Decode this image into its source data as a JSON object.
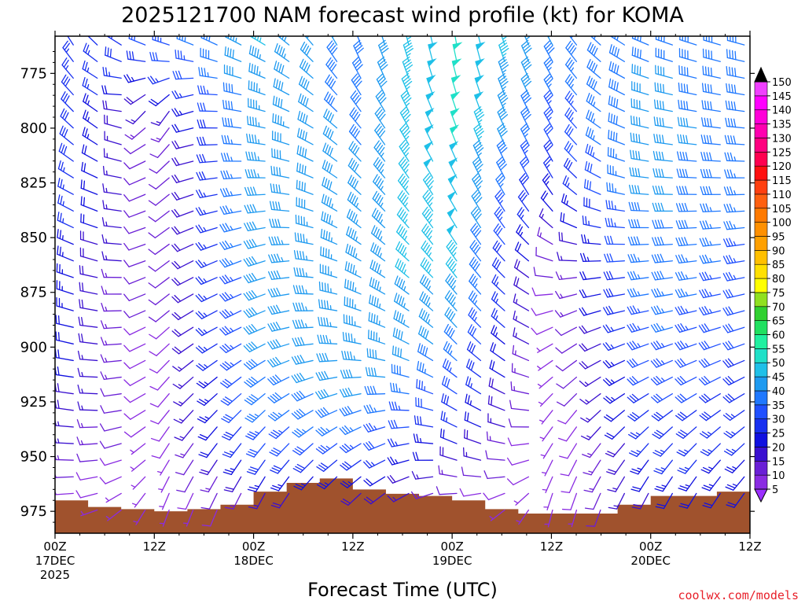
{
  "chart_data": {
    "type": "wind-barb-profile",
    "title": "2025121700 NAM forecast wind profile (kt) for KOMA",
    "xlabel": "Forecast Time (UTC)",
    "ylabel": "",
    "y_axis": {
      "reversed": true,
      "ylim": [
        985,
        758
      ],
      "ticks": [
        775,
        800,
        825,
        850,
        875,
        900,
        925,
        950,
        975
      ]
    },
    "x_axis": {
      "xlim_hours": [
        0,
        84
      ],
      "ticks": [
        {
          "hour": 0,
          "label1": "00Z",
          "label2": "17DEC",
          "label3": "2025"
        },
        {
          "hour": 12,
          "label1": "12Z",
          "label2": "",
          "label3": ""
        },
        {
          "hour": 24,
          "label1": "00Z",
          "label2": "18DEC",
          "label3": ""
        },
        {
          "hour": 36,
          "label1": "12Z",
          "label2": "",
          "label3": ""
        },
        {
          "hour": 48,
          "label1": "00Z",
          "label2": "19DEC",
          "label3": ""
        },
        {
          "hour": 60,
          "label1": "12Z",
          "label2": "",
          "label3": ""
        },
        {
          "hour": 72,
          "label1": "00Z",
          "label2": "20DEC",
          "label3": ""
        },
        {
          "hour": 84,
          "label1": "12Z",
          "label2": "",
          "label3": ""
        }
      ]
    },
    "colorbar": {
      "unit": "kt",
      "labels": [
        5,
        10,
        15,
        20,
        25,
        30,
        35,
        40,
        45,
        50,
        55,
        60,
        65,
        70,
        75,
        80,
        85,
        90,
        95,
        100,
        105,
        110,
        115,
        120,
        125,
        130,
        135,
        140,
        145,
        150
      ],
      "colors": [
        "#8a2be2",
        "#6a1fd6",
        "#3a10d0",
        "#1010e0",
        "#1830f0",
        "#2050ff",
        "#1f78ff",
        "#1e9af0",
        "#1fc0e8",
        "#20e0c8",
        "#20f0a0",
        "#20e060",
        "#30d030",
        "#90e020",
        "#ffff00",
        "#ffe000",
        "#ffc000",
        "#ffa000",
        "#ff9000",
        "#ff7a00",
        "#ff6010",
        "#ff4010",
        "#ff1010",
        "#ff0050",
        "#ff0080",
        "#ff00b0",
        "#ff00d8",
        "#ff00ff",
        "#f040ff"
      ]
    },
    "terrain": {
      "color": "#a0522d",
      "hours": [
        0,
        4,
        8,
        12,
        16,
        20,
        24,
        28,
        32,
        36,
        40,
        44,
        48,
        52,
        56,
        60,
        64,
        68,
        72,
        76,
        80,
        84
      ],
      "surface_pressure": [
        970,
        973,
        974,
        975,
        974,
        972,
        966,
        962,
        960,
        965,
        967,
        968,
        970,
        974,
        976,
        976,
        976,
        972,
        968,
        968,
        966,
        964
      ]
    },
    "wind_profile": {
      "levels_hPa": [
        760,
        770,
        780,
        790,
        800,
        810,
        820,
        830,
        840,
        850,
        860,
        870,
        880,
        890,
        900,
        910,
        920,
        930,
        940,
        950,
        960,
        970,
        980
      ],
      "hours": [
        0,
        12,
        24,
        36,
        48,
        60,
        72,
        84
      ],
      "speed_kt": [
        [
          24,
          26,
          28,
          30,
          31,
          31,
          30,
          29,
          28,
          27,
          26,
          25,
          25,
          24,
          24,
          23,
          22,
          20,
          18,
          15,
          12,
          8,
          5
        ],
        [
          32,
          30,
          22,
          14,
          10,
          8,
          8,
          8,
          8,
          8,
          8,
          8,
          8,
          7,
          7,
          6,
          6,
          6,
          6,
          5,
          5,
          5,
          5
        ],
        [
          46,
          45,
          44,
          44,
          44,
          43,
          43,
          42,
          42,
          42,
          42,
          41,
          41,
          40,
          40,
          39,
          38,
          36,
          33,
          29,
          22,
          14,
          8
        ],
        [
          40,
          38,
          38,
          38,
          39,
          40,
          41,
          42,
          43,
          44,
          44,
          44,
          45,
          45,
          44,
          43,
          41,
          39,
          35,
          30,
          24,
          18,
          12
        ],
        [
          50,
          52,
          52,
          52,
          51,
          50,
          50,
          49,
          49,
          48,
          47,
          46,
          44,
          42,
          39,
          36,
          32,
          28,
          24,
          19,
          14,
          10,
          6
        ],
        [
          40,
          38,
          36,
          34,
          32,
          29,
          26,
          22,
          18,
          13,
          10,
          8,
          7,
          6,
          5,
          5,
          5,
          5,
          5,
          5,
          5,
          5,
          5
        ],
        [
          40,
          40,
          41,
          41,
          42,
          42,
          42,
          42,
          41,
          41,
          40,
          39,
          38,
          37,
          35,
          34,
          32,
          30,
          28,
          26,
          23,
          19,
          15
        ],
        [
          38,
          38,
          38,
          38,
          37,
          37,
          36,
          35,
          35,
          34,
          33,
          32,
          31,
          30,
          30,
          29,
          28,
          27,
          26,
          25,
          23,
          21,
          18
        ]
      ],
      "direction_deg": [
        [
          335,
          330,
          325,
          320,
          315,
          310,
          305,
          300,
          300,
          295,
          295,
          290,
          290,
          285,
          285,
          280,
          280,
          280,
          275,
          275,
          270,
          270,
          270
        ],
        [
          290,
          270,
          230,
          200,
          195,
          200,
          210,
          215,
          220,
          225,
          225,
          225,
          225,
          220,
          220,
          215,
          215,
          215,
          210,
          210,
          205,
          200,
          200
        ],
        [
          300,
          295,
          290,
          285,
          280,
          275,
          270,
          265,
          260,
          255,
          250,
          250,
          245,
          245,
          240,
          235,
          230,
          225,
          220,
          215,
          210,
          205,
          200
        ],
        [
          340,
          335,
          330,
          325,
          320,
          318,
          315,
          312,
          310,
          305,
          300,
          295,
          290,
          285,
          280,
          270,
          260,
          250,
          240,
          235,
          230,
          225,
          220
        ],
        [
          350,
          348,
          345,
          342,
          340,
          338,
          335,
          332,
          330,
          328,
          325,
          322,
          320,
          318,
          315,
          310,
          305,
          300,
          295,
          290,
          280,
          260,
          240
        ],
        [
          330,
          330,
          330,
          330,
          330,
          330,
          330,
          325,
          315,
          300,
          280,
          260,
          240,
          225,
          215,
          210,
          205,
          200,
          200,
          195,
          195,
          190,
          190
        ],
        [
          290,
          288,
          285,
          282,
          280,
          278,
          275,
          272,
          270,
          268,
          265,
          262,
          260,
          255,
          250,
          245,
          240,
          232,
          225,
          218,
          212,
          206,
          200
        ],
        [
          285,
          282,
          280,
          278,
          275,
          272,
          270,
          268,
          265,
          262,
          260,
          258,
          255,
          252,
          250,
          245,
          240,
          235,
          230,
          225,
          220,
          215,
          210
        ]
      ],
      "n_time_columns": 29,
      "n_levels_rows": 30
    }
  },
  "credit": "coolwx.com/models"
}
